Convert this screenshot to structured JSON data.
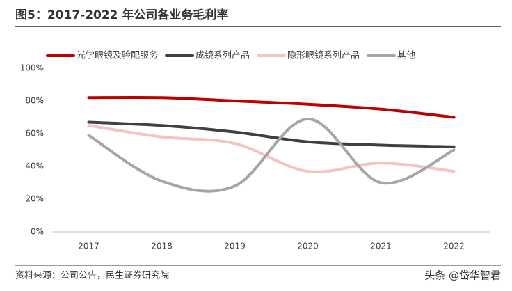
{
  "chart_data": {
    "type": "line",
    "title": "图5：2017-2022 年公司各业务毛利率",
    "source": "资料来源：公司公告，民生证券研究院",
    "watermark": "头条 @岱华智君",
    "categories": [
      "2017",
      "2018",
      "2019",
      "2020",
      "2021",
      "2022"
    ],
    "series": [
      {
        "name": "光学眼镜及验配服务",
        "color": "#c00000",
        "values": [
          82,
          82,
          80,
          78,
          75,
          70
        ]
      },
      {
        "name": "成镜系列产品",
        "color": "#404040",
        "values": [
          67,
          65,
          61,
          55,
          53,
          52
        ]
      },
      {
        "name": "隐形眼镜系列产品",
        "color": "#f2c4c4",
        "values": [
          65,
          58,
          54,
          37,
          42,
          37
        ]
      },
      {
        "name": "其他",
        "color": "#a6a6a6",
        "values": [
          59,
          31,
          28,
          69,
          30,
          50
        ]
      }
    ],
    "ylim": [
      0,
      100
    ],
    "yticks": [
      {
        "value": 0,
        "label": "0%"
      },
      {
        "value": 20,
        "label": "20%"
      },
      {
        "value": 40,
        "label": "40%"
      },
      {
        "value": 60,
        "label": "60%"
      },
      {
        "value": 80,
        "label": "80%"
      },
      {
        "value": 100,
        "label": "100%"
      }
    ],
    "smooth": true
  }
}
